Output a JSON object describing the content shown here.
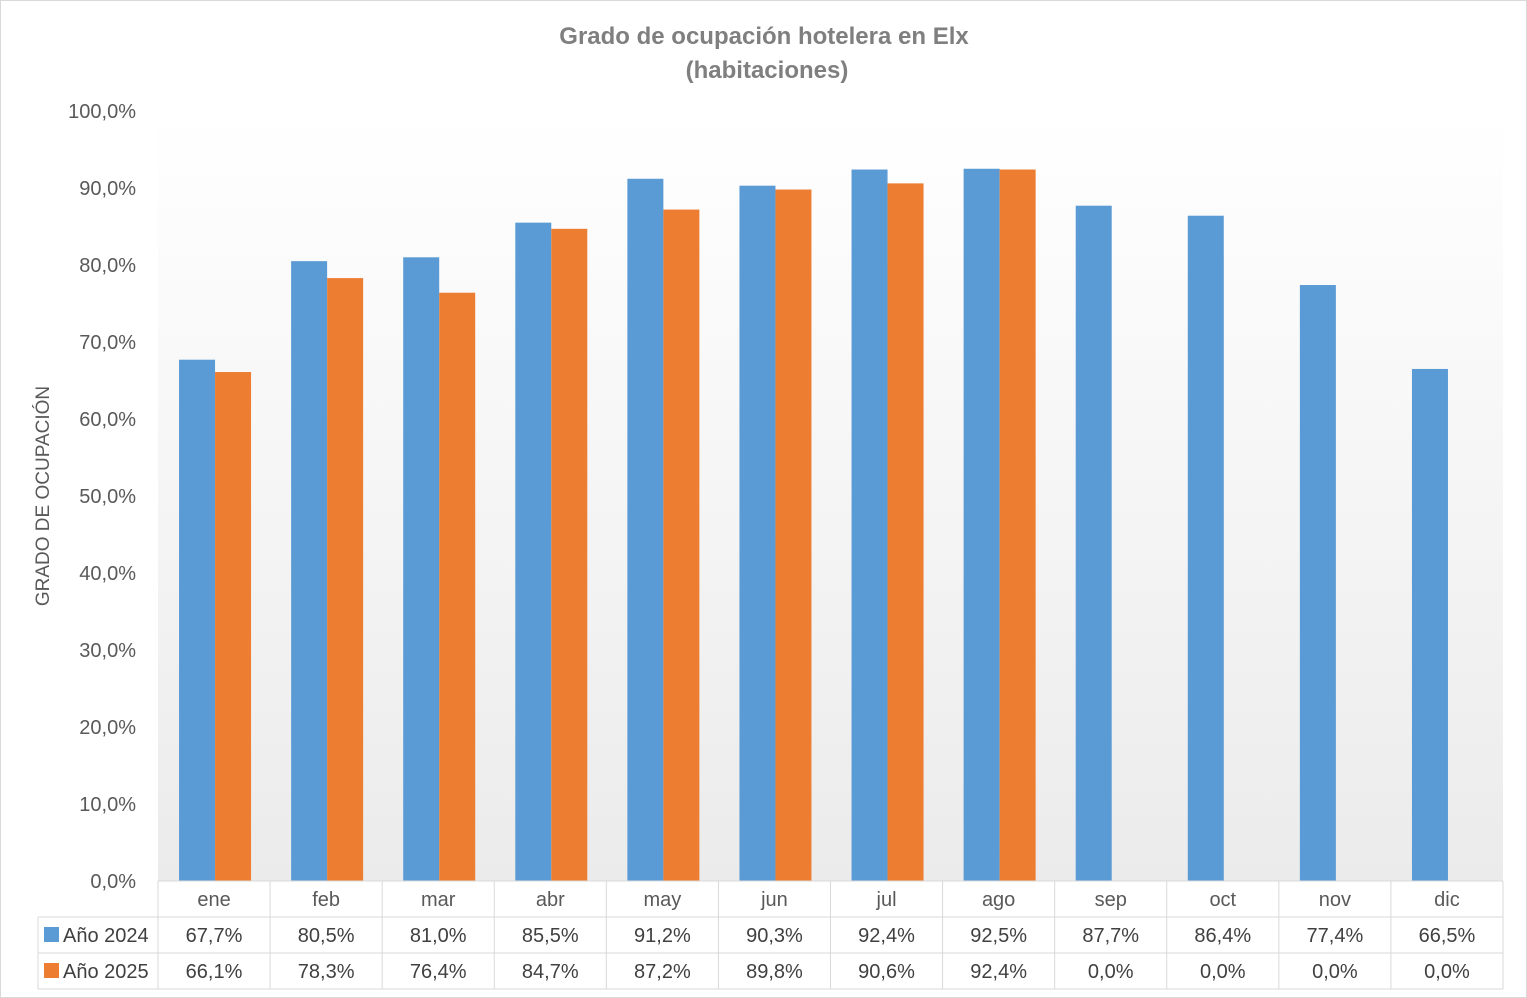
{
  "chart_data": {
    "type": "bar",
    "title": "Grado de ocupación hotelera en Elx",
    "subtitle": "(habitaciones)",
    "xlabel": "",
    "ylabel": "GRADO DE OCUPACIÓN",
    "ylim": [
      0,
      100
    ],
    "y_tick_step": 10,
    "y_tick_labels": [
      "0,0%",
      "10,0%",
      "20,0%",
      "30,0%",
      "40,0%",
      "50,0%",
      "60,0%",
      "70,0%",
      "80,0%",
      "90,0%",
      "100,0%"
    ],
    "grid": false,
    "legend": "data-table-left",
    "categories": [
      "ene",
      "feb",
      "mar",
      "abr",
      "may",
      "jun",
      "jul",
      "ago",
      "sep",
      "oct",
      "nov",
      "dic"
    ],
    "series": [
      {
        "name": "Año 2024",
        "color": "#5b9bd5",
        "values": [
          67.7,
          80.5,
          81.0,
          85.5,
          91.2,
          90.3,
          92.4,
          92.5,
          87.7,
          86.4,
          77.4,
          66.5
        ],
        "labels": [
          "67,7%",
          "80,5%",
          "81,0%",
          "85,5%",
          "91,2%",
          "90,3%",
          "92,4%",
          "92,5%",
          "87,7%",
          "86,4%",
          "77,4%",
          "66,5%"
        ]
      },
      {
        "name": "Año 2025",
        "color": "#ed7d31",
        "values": [
          66.1,
          78.3,
          76.4,
          84.7,
          87.2,
          89.8,
          90.6,
          92.4,
          0.0,
          0.0,
          0.0,
          0.0
        ],
        "labels": [
          "66,1%",
          "78,3%",
          "76,4%",
          "84,7%",
          "87,2%",
          "89,8%",
          "90,6%",
          "92,4%",
          "0,0%",
          "0,0%",
          "0,0%",
          "0,0%"
        ]
      }
    ]
  }
}
